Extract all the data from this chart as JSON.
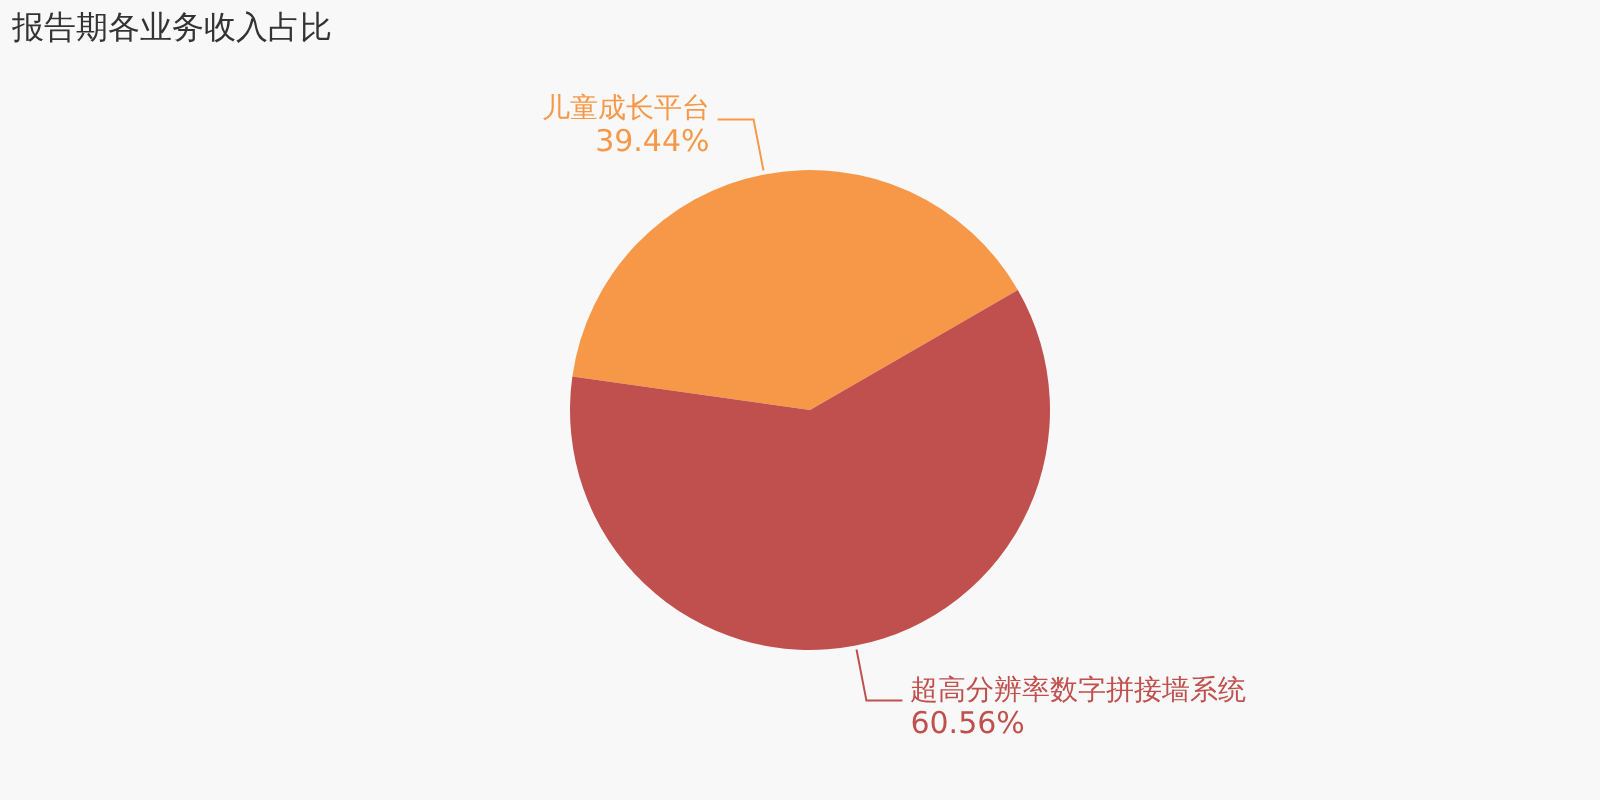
{
  "chart_data": {
    "type": "pie",
    "title": "报告期各业务收入占比",
    "categories": [
      "儿童成长平台",
      "超高分辨率数字拼接墙系统"
    ],
    "values": [
      39.44,
      60.56
    ],
    "colors": [
      "#f79848",
      "#c0504d"
    ],
    "value_labels": [
      "39.44%",
      "60.56%"
    ]
  }
}
